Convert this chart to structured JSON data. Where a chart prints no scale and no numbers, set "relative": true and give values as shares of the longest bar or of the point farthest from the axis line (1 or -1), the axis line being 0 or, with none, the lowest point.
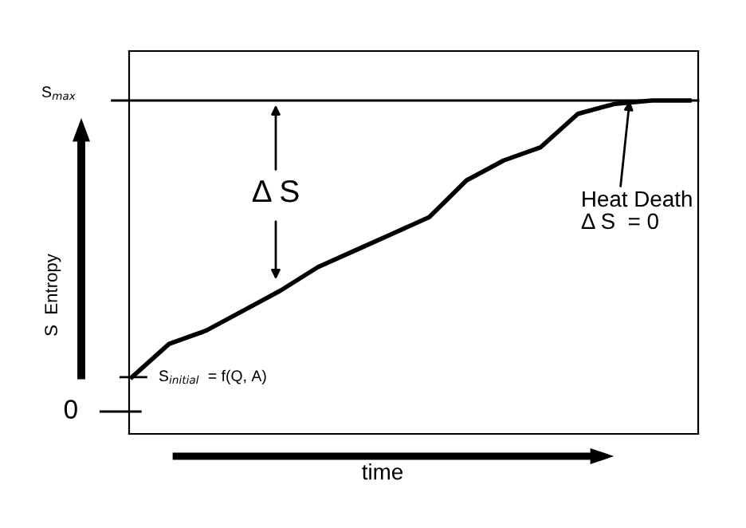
{
  "chart_data": {
    "type": "line",
    "relative": true,
    "xlabel": "time",
    "ylabel": "S  Entropy",
    "categories": [
      null,
      null,
      null,
      null,
      null,
      null,
      null,
      null,
      null,
      null,
      null,
      null,
      null,
      null,
      null,
      null
    ],
    "series": [
      {
        "color": "#000000",
        "values": [
          0.17,
          0.27,
          0.31,
          0.37,
          0.43,
          0.5,
          0.55,
          0.6,
          0.65,
          0.76,
          0.82,
          0.86,
          0.96,
          0.99,
          1.0,
          1.0
        ]
      }
    ],
    "grid": false,
    "legend": false,
    "marker": "none",
    "line_style": "solid",
    "ref_lines": [
      {
        "axis": "y",
        "value": 1,
        "label": "S$_{max}$",
        "color": "#000000"
      }
    ],
    "annotations": [
      "S$_{initial}$  = f(Q, A)",
      "Δ S",
      "Heat Death\nΔ S  = 0",
      "0"
    ]
  }
}
